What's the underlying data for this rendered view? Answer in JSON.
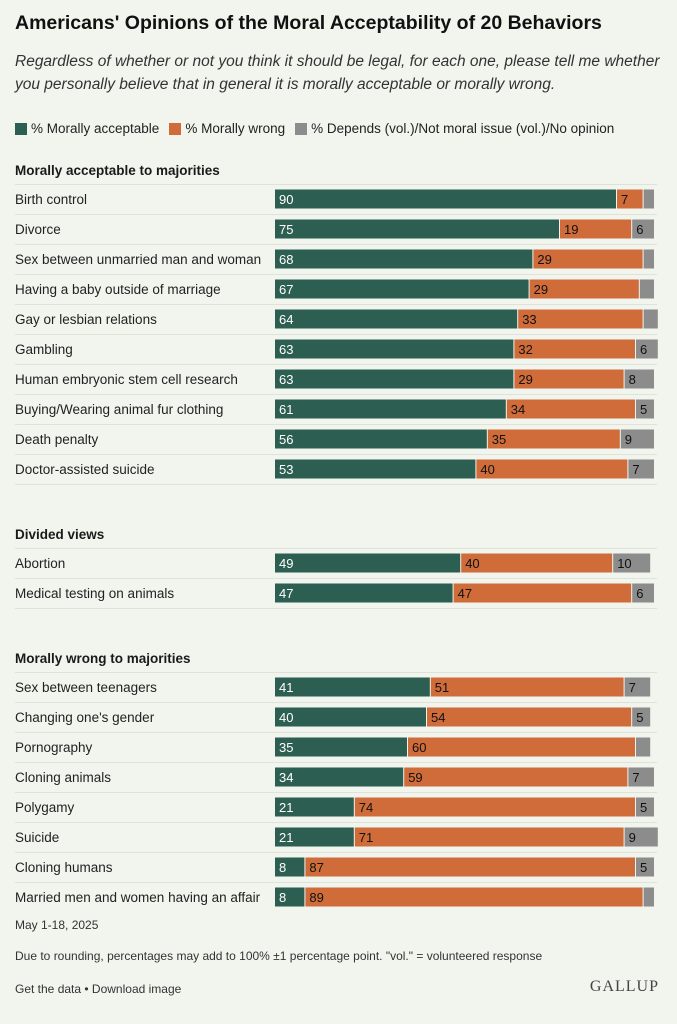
{
  "title": "Americans' Opinions of the Moral Acceptability of 20 Behaviors",
  "subtitle": "Regardless of whether or not you think it should be legal, for each one, please tell me whether you personally believe that in general it is morally acceptable or morally wrong.",
  "legend": [
    {
      "label": "% Morally acceptable",
      "color": "#2c5e52"
    },
    {
      "label": "% Morally wrong",
      "color": "#cf6c3a"
    },
    {
      "label": "% Depends (vol.)/Not moral issue (vol.)/No opinion",
      "color": "#8c8c8c"
    }
  ],
  "chart_data": {
    "type": "bar",
    "stacked": true,
    "orientation": "horizontal",
    "xlim": [
      0,
      100
    ],
    "series_names": [
      "% Morally acceptable",
      "% Morally wrong",
      "% Depends (vol.)/Not moral issue (vol.)/No opinion"
    ],
    "colors": [
      "#2c5e52",
      "#cf6c3a",
      "#8c8c8c"
    ],
    "groups": [
      {
        "heading": "Morally acceptable to majorities",
        "rows": [
          {
            "label": "Birth control",
            "values": [
              90,
              7,
              3
            ],
            "labels": [
              "90",
              "7",
              ""
            ]
          },
          {
            "label": "Divorce",
            "values": [
              75,
              19,
              6
            ],
            "labels": [
              "75",
              "19",
              "6"
            ]
          },
          {
            "label": "Sex between unmarried man and woman",
            "values": [
              68,
              29,
              3
            ],
            "labels": [
              "68",
              "29",
              ""
            ]
          },
          {
            "label": "Having a baby outside of marriage",
            "values": [
              67,
              29,
              4
            ],
            "labels": [
              "67",
              "29",
              ""
            ]
          },
          {
            "label": "Gay or lesbian relations",
            "values": [
              64,
              33,
              4
            ],
            "labels": [
              "64",
              "33",
              ""
            ]
          },
          {
            "label": "Gambling",
            "values": [
              63,
              32,
              6
            ],
            "labels": [
              "63",
              "32",
              "6"
            ]
          },
          {
            "label": "Human embryonic stem cell research",
            "values": [
              63,
              29,
              8
            ],
            "labels": [
              "63",
              "29",
              "8"
            ]
          },
          {
            "label": "Buying/Wearing animal fur clothing",
            "values": [
              61,
              34,
              5
            ],
            "labels": [
              "61",
              "34",
              "5"
            ]
          },
          {
            "label": "Death penalty",
            "values": [
              56,
              35,
              9
            ],
            "labels": [
              "56",
              "35",
              "9"
            ]
          },
          {
            "label": "Doctor-assisted suicide",
            "values": [
              53,
              40,
              7
            ],
            "labels": [
              "53",
              "40",
              "7"
            ]
          }
        ]
      },
      {
        "heading": "Divided views",
        "rows": [
          {
            "label": "Abortion",
            "values": [
              49,
              40,
              10
            ],
            "labels": [
              "49",
              "40",
              "10"
            ]
          },
          {
            "label": "Medical testing on animals",
            "values": [
              47,
              47,
              6
            ],
            "labels": [
              "47",
              "47",
              "6"
            ]
          }
        ]
      },
      {
        "heading": "Morally wrong to majorities",
        "rows": [
          {
            "label": "Sex between teenagers",
            "values": [
              41,
              51,
              7
            ],
            "labels": [
              "41",
              "51",
              "7"
            ]
          },
          {
            "label": "Changing one's gender",
            "values": [
              40,
              54,
              5
            ],
            "labels": [
              "40",
              "54",
              "5"
            ]
          },
          {
            "label": "Pornography",
            "values": [
              35,
              60,
              4
            ],
            "labels": [
              "35",
              "60",
              ""
            ]
          },
          {
            "label": "Cloning animals",
            "values": [
              34,
              59,
              7
            ],
            "labels": [
              "34",
              "59",
              "7"
            ]
          },
          {
            "label": "Polygamy",
            "values": [
              21,
              74,
              5
            ],
            "labels": [
              "21",
              "74",
              "5"
            ]
          },
          {
            "label": "Suicide",
            "values": [
              21,
              71,
              9
            ],
            "labels": [
              "21",
              "71",
              "9"
            ]
          },
          {
            "label": "Cloning humans",
            "values": [
              8,
              87,
              5
            ],
            "labels": [
              "8",
              "87",
              "5"
            ]
          },
          {
            "label": "Married men and women having an affair",
            "values": [
              8,
              89,
              3
            ],
            "labels": [
              "8",
              "89",
              ""
            ]
          }
        ]
      }
    ]
  },
  "footer": {
    "date": "May 1-18, 2025",
    "note": "Due to rounding, percentages may add to 100% ±1 percentage point. \"vol.\" = volunteered response",
    "get_data": "Get the data",
    "separator": " • ",
    "download": "Download image",
    "brand": "GALLUP"
  }
}
